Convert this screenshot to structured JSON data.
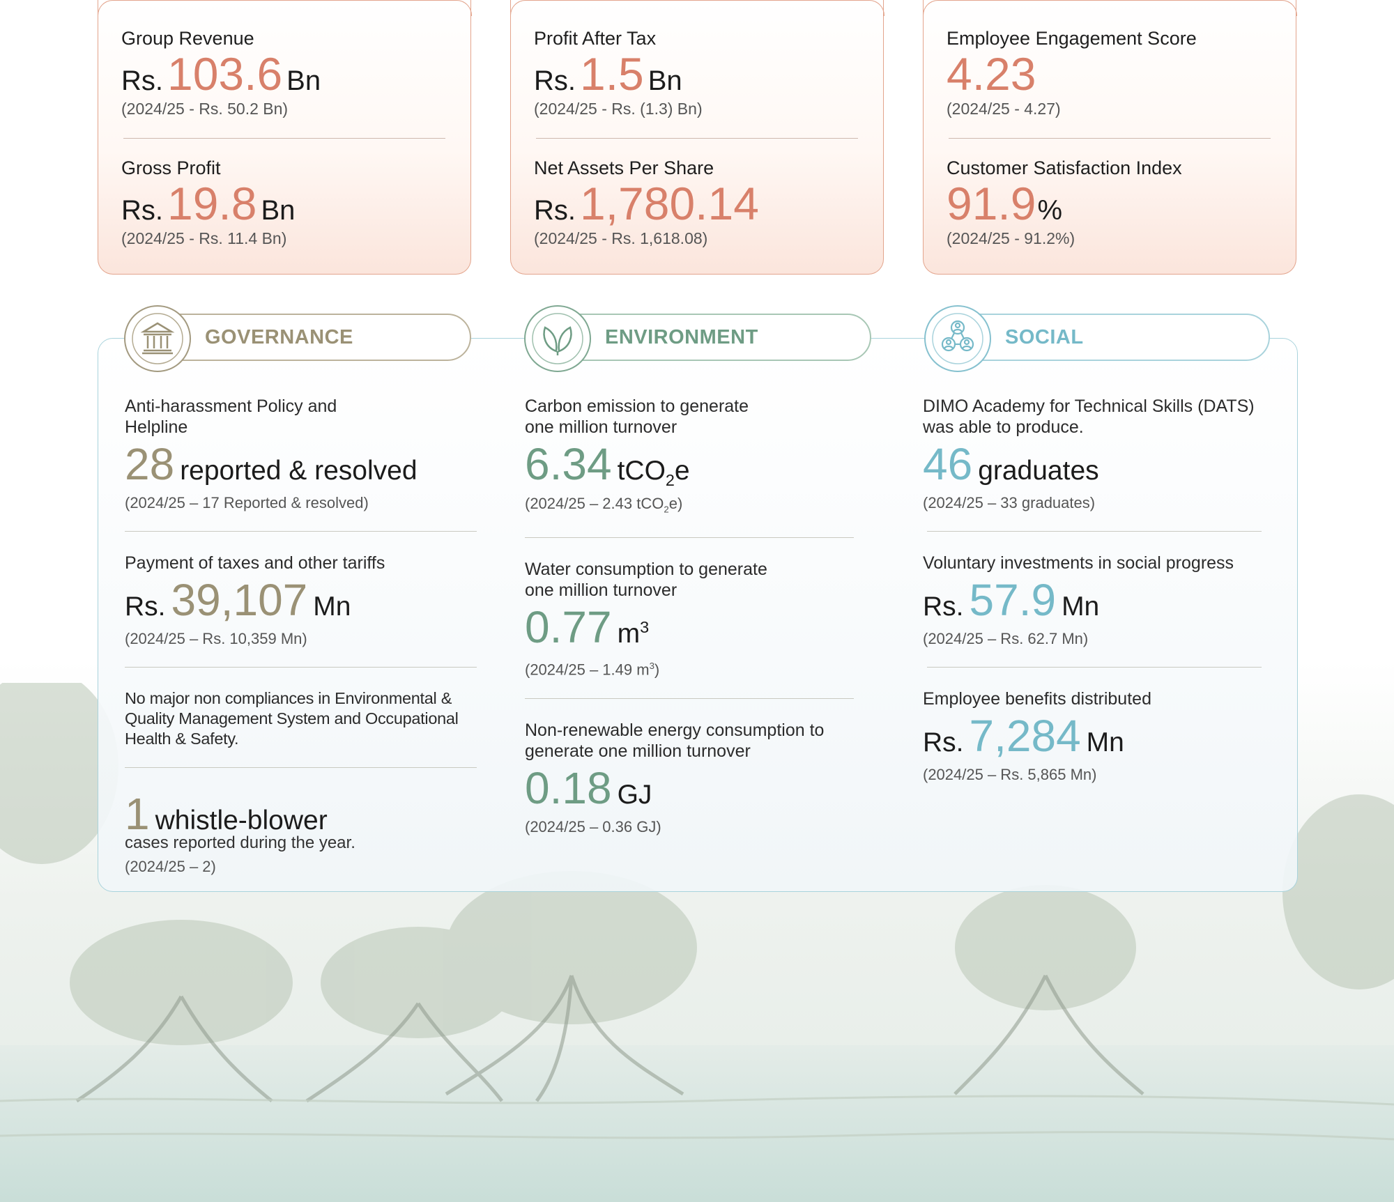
{
  "kpi_cards": [
    {
      "top": {
        "title": "Group Revenue",
        "prefix": "Rs.",
        "value": "103.6",
        "suffix": "Bn",
        "previous": "(2024/25 - Rs. 50.2 Bn)"
      },
      "bottom": {
        "title": "Gross Profit",
        "prefix": "Rs.",
        "value": "19.8",
        "suffix": "Bn",
        "previous": "(2024/25 - Rs. 11.4 Bn)"
      }
    },
    {
      "top": {
        "title": "Profit After Tax",
        "prefix": "Rs.",
        "value": "1.5",
        "suffix": "Bn",
        "previous": "(2024/25 - Rs. (1.3) Bn)"
      },
      "bottom": {
        "title": "Net Assets Per Share",
        "prefix": "Rs.",
        "value": "1,780.14",
        "suffix": "",
        "previous": "(2024/25 - Rs.  1,618.08)"
      }
    },
    {
      "top": {
        "title": "Employee Engagement Score",
        "prefix": "",
        "value": "4.23",
        "suffix": "",
        "previous": "(2024/25 - 4.27)"
      },
      "bottom": {
        "title": "Customer Satisfaction Index",
        "prefix": "",
        "value": "91.9",
        "suffix": "%",
        "previous": "(2024/25 - 91.2%)"
      }
    }
  ],
  "governance": {
    "heading": "GOVERNANCE",
    "icon": "institution-icon",
    "m1": {
      "label_1": "Anti-harassment Policy and",
      "label_2": "Helpline",
      "value": "28",
      "unit": "reported & resolved",
      "previous": "(2024/25 – 17 Reported & resolved)"
    },
    "m2": {
      "label": "Payment of taxes and other tariffs",
      "prefix": "Rs.",
      "value": "39,107",
      "unit": "Mn",
      "previous": "(2024/25 – Rs. 10,359 Mn)"
    },
    "m3": {
      "note_1": "No major non compliances in Environmental &",
      "note_2": "Quality Management System and Occupational",
      "note_3": "Health & Safety."
    },
    "m4": {
      "value": "1",
      "unit": "whistle-blower",
      "tail": "cases reported during the year.",
      "previous": "(2024/25 – 2)"
    }
  },
  "environment": {
    "heading": "ENVIRONMENT",
    "icon": "leaves-icon",
    "m1": {
      "label_1": "Carbon emission to generate",
      "label_2": "one million turnover",
      "value": "6.34",
      "unit_a": "tCO",
      "unit_sub": "2",
      "unit_b": "e",
      "prev_a": "(2024/25 – 2.43 tCO",
      "prev_sub": "2",
      "prev_b": "e)"
    },
    "m2": {
      "label_1": "Water consumption to generate",
      "label_2": "one million turnover",
      "value": "0.77",
      "unit_a": "m",
      "unit_sup": "3",
      "prev_a": "(2024/25 – 1.49 m",
      "prev_sup": "3",
      "prev_b": ")"
    },
    "m3": {
      "label_1": "Non-renewable energy consumption to",
      "label_2": "generate one million turnover",
      "value": "0.18",
      "unit": "GJ",
      "previous": "(2024/25 – 0.36 GJ)"
    }
  },
  "social": {
    "heading": "SOCIAL",
    "icon": "people-network-icon",
    "m1": {
      "label_1": "DIMO Academy for Technical Skills (DATS)",
      "label_2": "was able to produce.",
      "value": "46",
      "unit": "graduates",
      "previous": "(2024/25 – 33 graduates)"
    },
    "m2": {
      "label": "Voluntary investments in social progress",
      "prefix": "Rs.",
      "value": "57.9",
      "unit": "Mn",
      "previous": "(2024/25 – Rs. 62.7 Mn)"
    },
    "m3": {
      "label": "Employee benefits distributed",
      "prefix": "Rs.",
      "value": "7,284",
      "unit": "Mn",
      "previous": "(2024/25 – Rs. 5,865 Mn)"
    }
  },
  "colors": {
    "kpi_accent": "#d8806a",
    "governance": "#9a9175",
    "environment": "#6e9c84",
    "social": "#75b9c8"
  }
}
